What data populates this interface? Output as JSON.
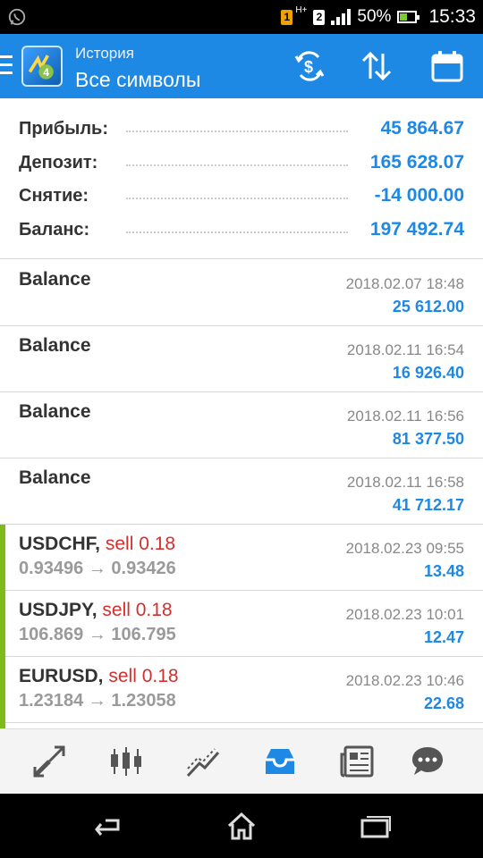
{
  "status_bar": {
    "network_label": "H+",
    "sim1": "1",
    "sim2": "2",
    "battery": "50%",
    "time": "15:33"
  },
  "app_bar": {
    "subtitle": "История",
    "title": "Все символы"
  },
  "summary": [
    {
      "label": "Прибыль:",
      "value": "45 864.67"
    },
    {
      "label": "Депозит:",
      "value": "165 628.07"
    },
    {
      "label": "Снятие:",
      "value": "-14 000.00"
    },
    {
      "label": "Баланс:",
      "value": "197 492.74"
    }
  ],
  "deals": [
    {
      "symbol": "Balance",
      "action": "",
      "prices": "",
      "time": "2018.02.07 18:48",
      "amount": "25 612.00"
    },
    {
      "symbol": "Balance",
      "action": "",
      "prices": "",
      "time": "2018.02.11 16:54",
      "amount": "16 926.40"
    },
    {
      "symbol": "Balance",
      "action": "",
      "prices": "",
      "time": "2018.02.11 16:56",
      "amount": "81 377.50"
    },
    {
      "symbol": "Balance",
      "action": "",
      "prices": "",
      "time": "2018.02.11 16:58",
      "amount": "41 712.17"
    },
    {
      "symbol": "USDCHF,",
      "action": "sell 0.18",
      "prices": "0.93496 → 0.93426",
      "time": "2018.02.23 09:55",
      "amount": "13.48"
    },
    {
      "symbol": "USDJPY,",
      "action": "sell 0.18",
      "prices": "106.869 → 106.795",
      "time": "2018.02.23 10:01",
      "amount": "12.47"
    },
    {
      "symbol": "EURUSD,",
      "action": "sell 0.18",
      "prices": "1.23184 → 1.23058",
      "time": "2018.02.23 10:46",
      "amount": "22.68"
    }
  ],
  "colors": {
    "accent": "#1e88e5",
    "sell": "#d32f2f",
    "trade_marker": "#7fba1c",
    "active_nav": "#1e88e5",
    "inactive_nav": "#555555"
  },
  "bottom_nav": [
    "trade-icon",
    "quotes-chart-icon",
    "chart-icon",
    "history-inbox-icon",
    "news-icon",
    "chat-icon"
  ]
}
